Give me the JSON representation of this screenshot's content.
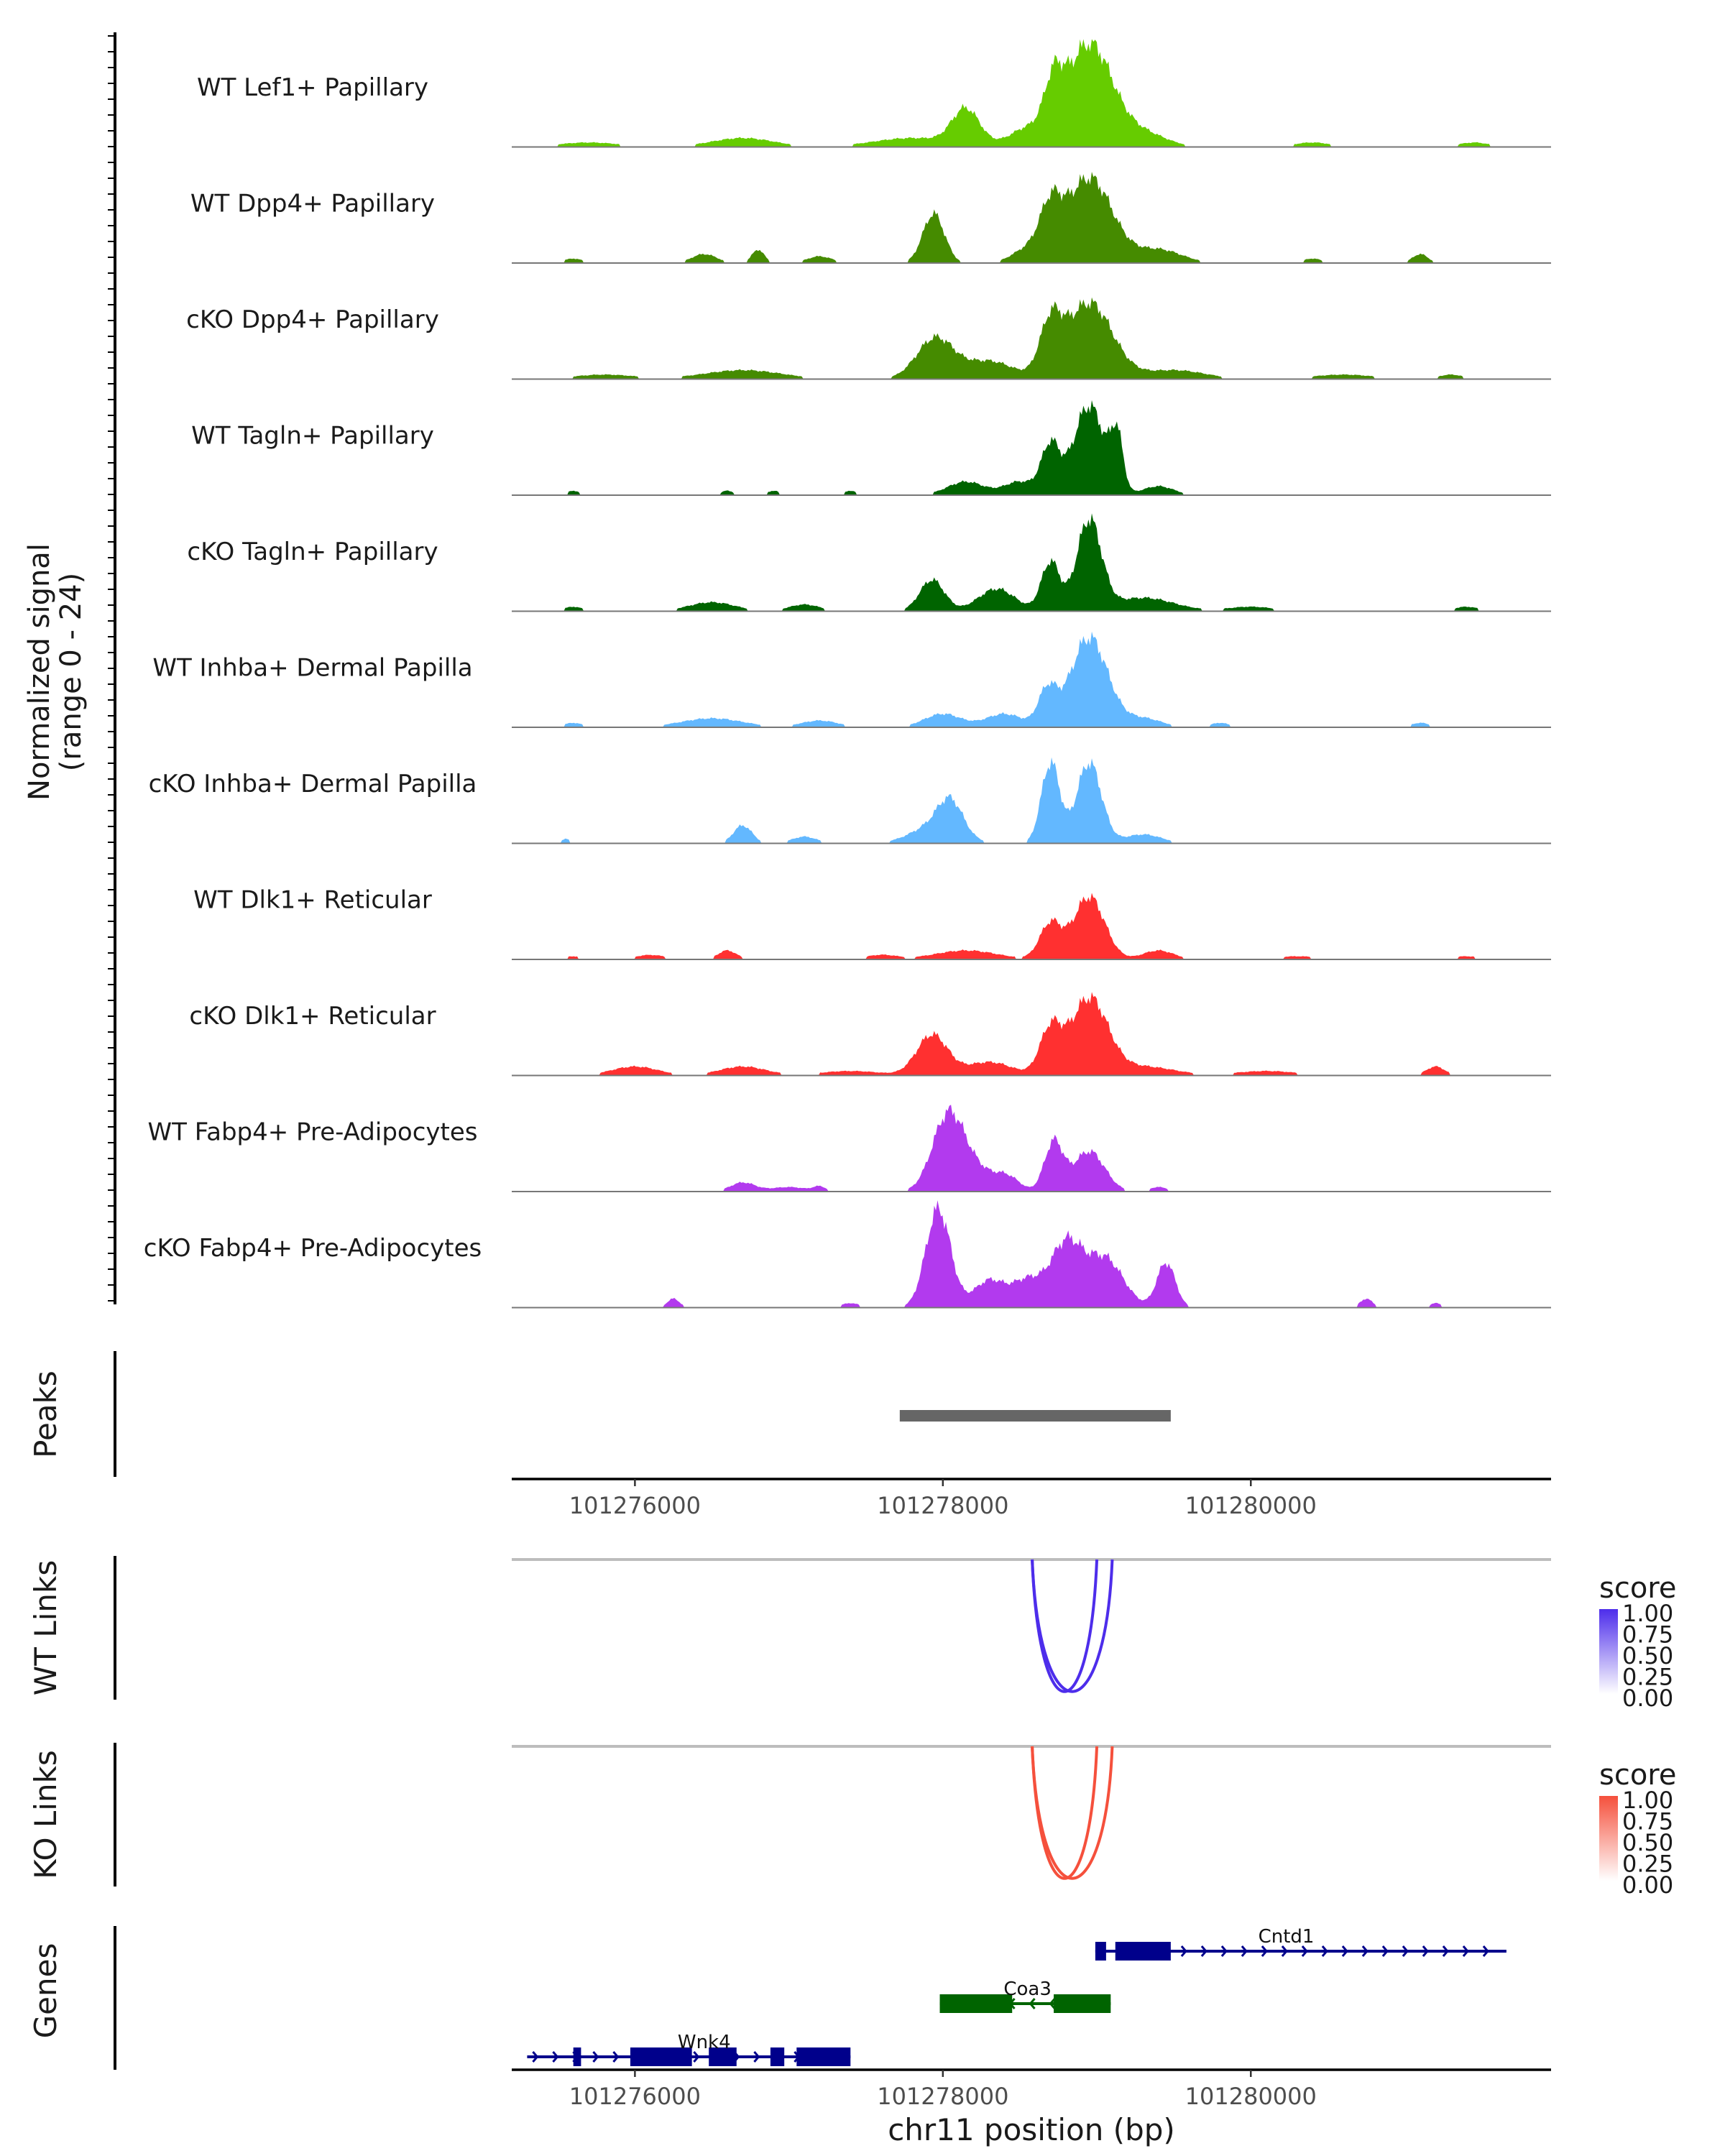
{
  "figure": {
    "yaxis_title_line1": "Normalized signal",
    "yaxis_title_line2": "(range 0 - 24)",
    "xaxis_title": "chr11 position (bp)"
  },
  "chart_data": {
    "type": "area",
    "x_range": [
      101275200,
      101281950
    ],
    "x_ticks": [
      101276000,
      101278000,
      101280000
    ],
    "x_tick_labels": [
      "101276000",
      "101278000",
      "101280000"
    ],
    "y_range": [
      0,
      24
    ],
    "coverage_tracks": [
      {
        "name": "WT Lef1+ Papillary",
        "color": "#66CC00",
        "peaks": [
          [
            101278950,
            23,
            150
          ],
          [
            101278720,
            10,
            60
          ],
          [
            101278150,
            8,
            90
          ],
          [
            101278550,
            4,
            120
          ],
          [
            101279300,
            3,
            150
          ],
          [
            101276700,
            2,
            200
          ],
          [
            101277800,
            2,
            250
          ],
          [
            101275700,
            1,
            200
          ],
          [
            101280400,
            1,
            120
          ],
          [
            101281450,
            1,
            100
          ]
        ]
      },
      {
        "name": "WT Dpp4+ Papillary",
        "color": "#458B00",
        "peaks": [
          [
            101278950,
            19,
            150
          ],
          [
            101278700,
            10,
            70
          ],
          [
            101277940,
            11,
            70
          ],
          [
            101278550,
            3,
            100
          ],
          [
            101276450,
            2,
            80
          ],
          [
            101276800,
            3,
            40
          ],
          [
            101279400,
            3,
            150
          ],
          [
            101281100,
            2,
            50
          ],
          [
            101277200,
            1.5,
            80
          ],
          [
            101275600,
            1,
            60
          ],
          [
            101280400,
            1,
            60
          ]
        ]
      },
      {
        "name": "cKO Dpp4+ Papillary",
        "color": "#458B00",
        "peaks": [
          [
            101278950,
            17,
            150
          ],
          [
            101278700,
            11,
            70
          ],
          [
            101277950,
            9,
            120
          ],
          [
            101278300,
            4,
            160
          ],
          [
            101276700,
            2,
            250
          ],
          [
            101279500,
            2,
            200
          ],
          [
            101275800,
            1,
            200
          ],
          [
            101280600,
            1,
            200
          ],
          [
            101281300,
            1,
            80
          ]
        ]
      },
      {
        "name": "WT Tagln+ Papillary",
        "color": "#006400",
        "peaks": [
          [
            101278950,
            20,
            100
          ],
          [
            101279130,
            12,
            40
          ],
          [
            101278700,
            11,
            60
          ],
          [
            101278150,
            3,
            120
          ],
          [
            101278500,
            3,
            100
          ],
          [
            101279400,
            2,
            100
          ],
          [
            101275600,
            1,
            40
          ],
          [
            101276600,
            1,
            40
          ],
          [
            101276900,
            1,
            40
          ],
          [
            101277400,
            1,
            40
          ]
        ]
      },
      {
        "name": "cKO Tagln+ Papillary",
        "color": "#006400",
        "peaks": [
          [
            101278950,
            20,
            80
          ],
          [
            101278700,
            11,
            60
          ],
          [
            101277930,
            7,
            80
          ],
          [
            101278350,
            5,
            120
          ],
          [
            101279300,
            3,
            200
          ],
          [
            101276500,
            2,
            150
          ],
          [
            101277100,
            1.5,
            100
          ],
          [
            101275600,
            1,
            60
          ],
          [
            101280000,
            1,
            150
          ],
          [
            101281400,
            1,
            80
          ]
        ]
      },
      {
        "name": "WT Inhba+ Dermal Papilla",
        "color": "#63B8FF",
        "peaks": [
          [
            101278950,
            20,
            120
          ],
          [
            101278680,
            8,
            60
          ],
          [
            101278000,
            3,
            120
          ],
          [
            101278400,
            3,
            120
          ],
          [
            101276500,
            2,
            200
          ],
          [
            101277200,
            1.5,
            120
          ],
          [
            101279300,
            2,
            120
          ],
          [
            101275600,
            1,
            60
          ],
          [
            101279800,
            1,
            60
          ],
          [
            101281100,
            1,
            60
          ]
        ]
      },
      {
        "name": "cKO Inhba+ Dermal Papilla",
        "color": "#63B8FF",
        "peaks": [
          [
            101278950,
            18,
            80
          ],
          [
            101278700,
            18,
            60
          ],
          [
            101278050,
            7,
            80
          ],
          [
            101276700,
            4,
            60
          ],
          [
            101277950,
            4,
            150
          ],
          [
            101277100,
            1.5,
            80
          ],
          [
            101279300,
            2,
            120
          ],
          [
            101275550,
            1,
            30
          ]
        ]
      },
      {
        "name": "WT Dlk1+ Reticular",
        "color": "#FF3030",
        "peaks": [
          [
            101278950,
            14,
            100
          ],
          [
            101278700,
            8,
            70
          ],
          [
            101276600,
            2,
            60
          ],
          [
            101278150,
            2,
            200
          ],
          [
            101279400,
            2,
            100
          ],
          [
            101276100,
            1,
            100
          ],
          [
            101277600,
            1,
            100
          ],
          [
            101275600,
            0.7,
            60
          ],
          [
            101280300,
            0.7,
            150
          ],
          [
            101281400,
            0.7,
            100
          ]
        ]
      },
      {
        "name": "cKO Dlk1+ Reticular",
        "color": "#FF3030",
        "peaks": [
          [
            101278950,
            17,
            120
          ],
          [
            101278700,
            10,
            70
          ],
          [
            101277930,
            9,
            100
          ],
          [
            101278300,
            3,
            150
          ],
          [
            101279300,
            2,
            200
          ],
          [
            101276000,
            2,
            150
          ],
          [
            101276700,
            2,
            150
          ],
          [
            101277400,
            1,
            200
          ],
          [
            101280100,
            1,
            200
          ],
          [
            101281200,
            2,
            60
          ]
        ]
      },
      {
        "name": "WT Fabp4+ Pre-Adipocytes",
        "color": "#B23AEE",
        "peaks": [
          [
            101278030,
            16,
            100
          ],
          [
            101278720,
            11,
            60
          ],
          [
            101278950,
            9,
            100
          ],
          [
            101278200,
            5,
            120
          ],
          [
            101278420,
            3,
            80
          ],
          [
            101276700,
            2,
            80
          ],
          [
            101277000,
            1,
            120
          ],
          [
            101279400,
            1,
            60
          ],
          [
            101277200,
            1,
            40
          ]
        ]
      },
      {
        "name": "cKO Fabp4+ Pre-Adipocytes",
        "color": "#B23AEE",
        "peaks": [
          [
            101277970,
            22,
            80
          ],
          [
            101278800,
            14,
            100
          ],
          [
            101279050,
            11,
            120
          ],
          [
            101278300,
            6,
            100
          ],
          [
            101278550,
            6,
            100
          ],
          [
            101279450,
            10,
            60
          ],
          [
            101276250,
            2,
            40
          ],
          [
            101277400,
            1,
            60
          ],
          [
            101280750,
            2,
            40
          ],
          [
            101281200,
            1,
            40
          ]
        ]
      }
    ],
    "peaks_track": {
      "label": "Peaks",
      "regions": [
        [
          101277720,
          101279480
        ]
      ]
    },
    "link_tracks": [
      {
        "label": "WT Links",
        "legend_title": "score",
        "legend_ticks": [
          "1.00",
          "0.75",
          "0.50",
          "0.25",
          "0.00"
        ],
        "color_high": "#4D2DEB",
        "color_low": "#FFFFFF",
        "links": [
          [
            101278580,
            101279000
          ],
          [
            101278580,
            101279100
          ]
        ]
      },
      {
        "label": "KO Links",
        "legend_title": "score",
        "legend_ticks": [
          "1.00",
          "0.75",
          "0.50",
          "0.25",
          "0.00"
        ],
        "color_high": "#F5503C",
        "color_low": "#FFFFFF",
        "links": [
          [
            101278580,
            101279000
          ],
          [
            101278580,
            101279100
          ]
        ]
      }
    ],
    "genes_track": {
      "label": "Genes",
      "genes": [
        {
          "name": "Cntd1",
          "row": 0,
          "strand": "+",
          "start": 101278990,
          "end": 101281660,
          "color": "#00008B",
          "exons": [
            [
              101278990,
              101279060
            ],
            [
              101279120,
              101279480
            ]
          ]
        },
        {
          "name": "Coa3",
          "row": 1,
          "strand": "-",
          "start": 101277980,
          "end": 101279090,
          "color": "#006400",
          "exons": [
            [
              101277980,
              101278450
            ],
            [
              101278720,
              101279090
            ]
          ]
        },
        {
          "name": "Wnk4",
          "row": 2,
          "strand": "+",
          "start": 101275300,
          "end": 101277400,
          "color": "#00008B",
          "exons": [
            [
              101275600,
              101275650
            ],
            [
              101275970,
              101276370
            ],
            [
              101276480,
              101276660
            ],
            [
              101276880,
              101276970
            ],
            [
              101277050,
              101277400
            ]
          ]
        }
      ]
    }
  }
}
